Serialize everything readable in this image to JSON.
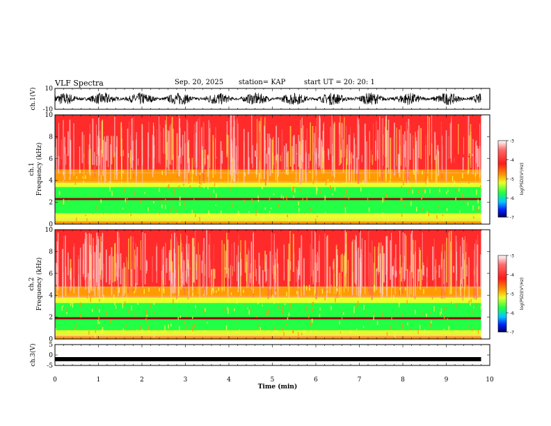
{
  "header": {
    "title": "VLF Spectra",
    "date": "Sep. 20, 2025",
    "station": "station= KAP",
    "start_ut": "start  UT  =   20: 20: 1"
  },
  "colors": {
    "red": "#ff2a2a",
    "light_red": "#ff8a8a",
    "orange": "#ff9a00",
    "yellow": "#e8ff2a",
    "green": "#22ff44",
    "dark_band": "#8a0a0a",
    "signal_trace": "#000000"
  },
  "chart_data": [
    {
      "type": "line",
      "panel": "ch1-waveform",
      "ylabel": "ch.1(V)",
      "ylim": [
        -10,
        10
      ],
      "yticks": [
        "10",
        "-10"
      ],
      "xlim": [
        0,
        10
      ],
      "description_values": {
        "min": -6,
        "max": 6
      },
      "series": [
        {
          "values_fn": "noise"
        }
      ]
    },
    {
      "type": "heatmap",
      "panel": "ch1-spectrogram",
      "ylabel": "ch.1",
      "ylabel2": "Frequency (kHz)",
      "ylim": [
        0,
        10
      ],
      "yticks": [
        "0",
        "2",
        "4",
        "6",
        "8",
        "10"
      ],
      "xlim": [
        0,
        10
      ],
      "colorbar": {
        "label": "log(PSD)(V²/Hz)",
        "range": [
          -7,
          -3
        ],
        "ticks": [
          "-3",
          "-4",
          "-5",
          "-6",
          "-7"
        ]
      },
      "bands": [
        {
          "from": 0,
          "to": 0.3,
          "level": "orange"
        },
        {
          "from": 0.3,
          "to": 1.0,
          "level": "yellow"
        },
        {
          "from": 1.0,
          "to": 2.2,
          "level": "green"
        },
        {
          "from": 2.2,
          "to": 2.4,
          "level": "dark_band"
        },
        {
          "from": 2.4,
          "to": 3.4,
          "level": "green"
        },
        {
          "from": 3.4,
          "to": 3.8,
          "level": "yellow"
        },
        {
          "from": 3.8,
          "to": 5.0,
          "level": "orange"
        },
        {
          "from": 5.0,
          "to": 10.0,
          "level": "red"
        }
      ]
    },
    {
      "type": "heatmap",
      "panel": "ch2-spectrogram",
      "ylabel": "ch.2",
      "ylabel2": "Frequency (kHz)",
      "ylim": [
        0,
        10
      ],
      "yticks": [
        "0",
        "2",
        "4",
        "6",
        "8",
        "10"
      ],
      "xlim": [
        0,
        10
      ],
      "colorbar": {
        "label": "log(PSD)(V²/Hz)",
        "range": [
          -7,
          -3
        ],
        "ticks": [
          "-3",
          "-4",
          "-5",
          "-6",
          "-7"
        ]
      },
      "bands": [
        {
          "from": 0,
          "to": 0.3,
          "level": "orange"
        },
        {
          "from": 0.3,
          "to": 0.8,
          "level": "yellow"
        },
        {
          "from": 0.8,
          "to": 1.8,
          "level": "green"
        },
        {
          "from": 1.8,
          "to": 2.0,
          "level": "dark_band"
        },
        {
          "from": 2.0,
          "to": 3.3,
          "level": "green"
        },
        {
          "from": 3.3,
          "to": 3.8,
          "level": "yellow"
        },
        {
          "from": 3.8,
          "to": 4.8,
          "level": "orange"
        },
        {
          "from": 4.8,
          "to": 10.0,
          "level": "red"
        }
      ]
    },
    {
      "type": "line",
      "panel": "ch3-waveform",
      "ylabel": "ch.3(V)",
      "ylim": [
        -5,
        5
      ],
      "yticks": [
        "5",
        "0",
        "-5"
      ],
      "xlim": [
        0,
        10
      ],
      "series": [
        {
          "level": -2
        }
      ]
    }
  ],
  "x_axis": {
    "label": "Time (min)",
    "ticks": [
      "0",
      "1",
      "2",
      "3",
      "4",
      "5",
      "6",
      "7",
      "8",
      "9",
      "10"
    ],
    "data_end": 9.8
  }
}
